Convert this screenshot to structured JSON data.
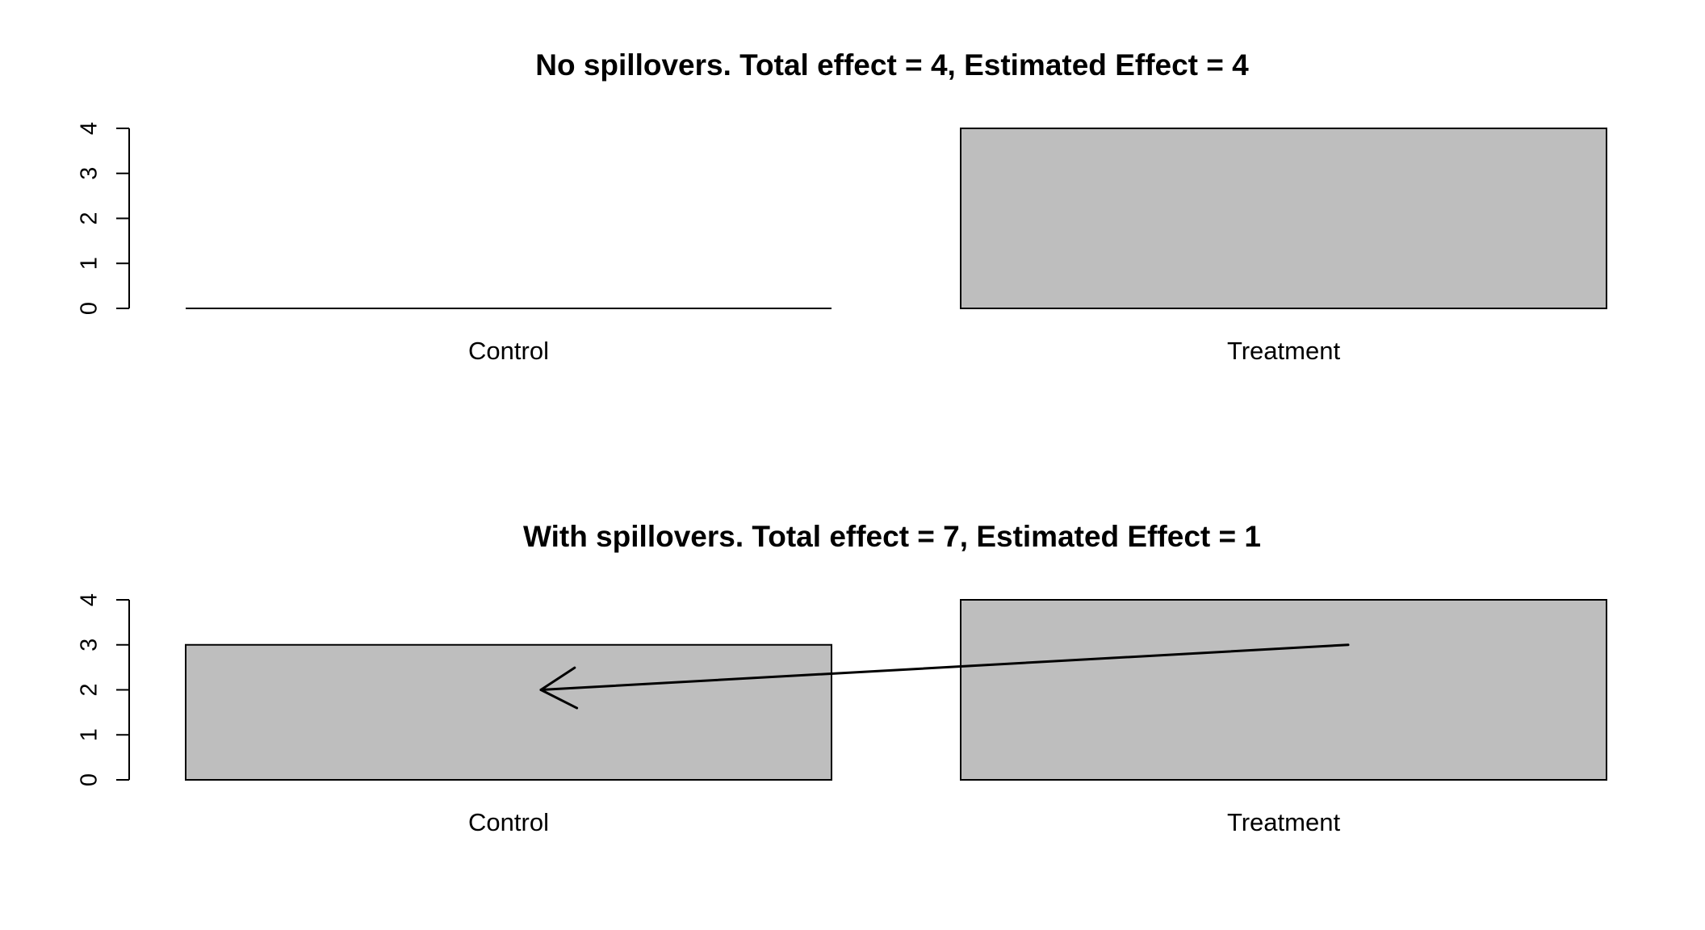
{
  "chart_data": [
    {
      "type": "bar",
      "title": "No spillovers. Total effect = 4, Estimated Effect = 4",
      "categories": [
        "Control",
        "Treatment"
      ],
      "values": [
        0,
        4
      ],
      "ylim": [
        0,
        4
      ],
      "yticks": [
        "0",
        "1",
        "2",
        "3",
        "4"
      ],
      "xlabel": "",
      "ylabel": "",
      "bar_color": "#bebebe",
      "grid": false
    },
    {
      "type": "bar",
      "title": "With spillovers. Total effect = 7, Estimated Effect = 1",
      "categories": [
        "Control",
        "Treatment"
      ],
      "values": [
        3,
        4
      ],
      "ylim": [
        0,
        4
      ],
      "yticks": [
        "0",
        "1",
        "2",
        "3",
        "4"
      ],
      "xlabel": "",
      "ylabel": "",
      "bar_color": "#bebebe",
      "grid": false,
      "annotation": {
        "type": "arrow",
        "from": {
          "category": "Treatment",
          "y": 3
        },
        "to": {
          "category": "Control",
          "y": 2
        }
      }
    }
  ]
}
